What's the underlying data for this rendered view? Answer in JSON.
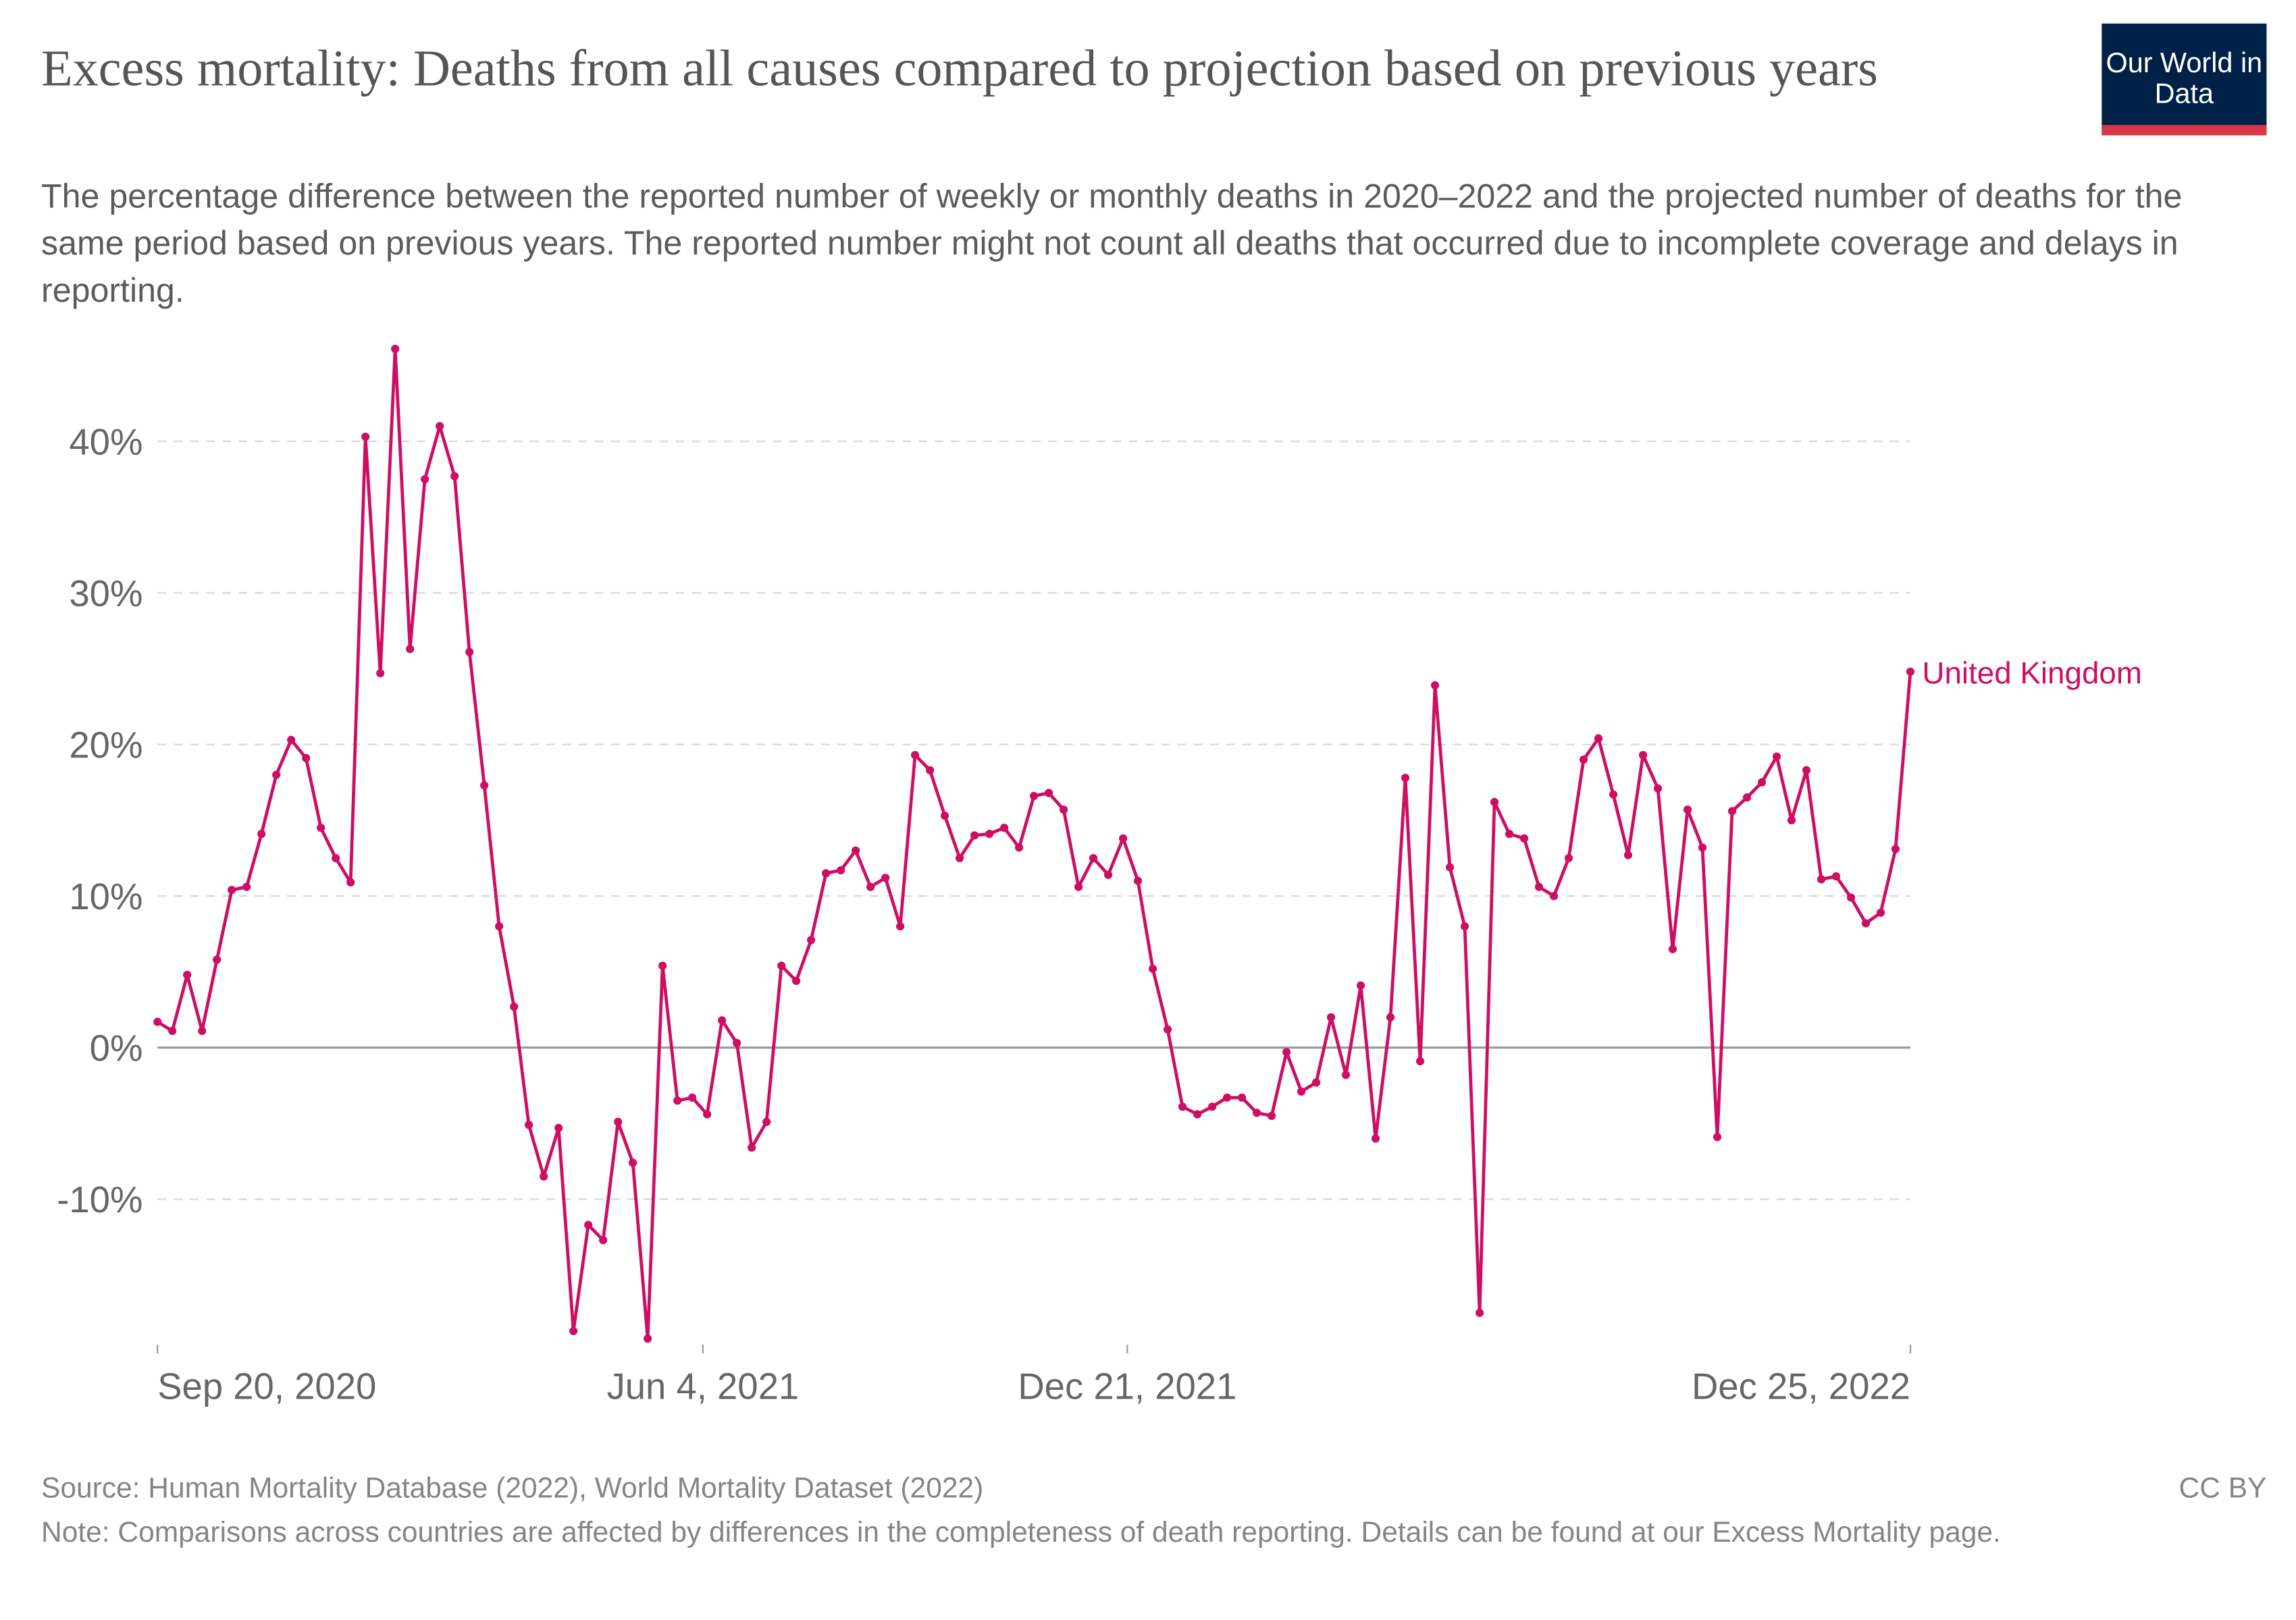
{
  "header": {
    "title": "Excess mortality: Deaths from all causes compared to projection based on previous years",
    "subtitle": "The percentage difference between the reported number of weekly or monthly deaths in 2020–2022 and the projected number of deaths for the same period based on previous years. The reported number might not count all deaths that occurred due to incomplete coverage and delays in reporting.",
    "logo_text": "Our World in Data"
  },
  "footer": {
    "source": "Source: Human Mortality Database (2022), World Mortality Dataset (2022)",
    "license": "CC BY",
    "note": "Note: Comparisons across countries are affected by differences in the completeness of death reporting. Details can be found at our Excess Mortality page."
  },
  "colors": {
    "series": "#ce0e63",
    "grid": "#dddddd",
    "zero": "#999999",
    "logo_bg": "#002147",
    "logo_bar": "#dc3545"
  },
  "chart_data": {
    "type": "line",
    "title": "Excess mortality: Deaths from all causes compared to projection based on previous years",
    "xlabel": "",
    "ylabel": "",
    "start_date": "2020-09-20",
    "interval_days": 7,
    "ylim": [
      -19.5,
      46.5
    ],
    "yticks": [
      -10,
      0,
      10,
      20,
      30,
      40
    ],
    "ytick_labels": [
      "-10%",
      "0%",
      "10%",
      "20%",
      "30%",
      "40%"
    ],
    "xticks": [
      {
        "label": "Sep 20, 2020",
        "day_offset": 0
      },
      {
        "label": "Jun 4, 2021",
        "day_offset": 257
      },
      {
        "label": "Dec 21, 2021",
        "day_offset": 457
      },
      {
        "label": "Dec 25, 2022",
        "day_offset": 826
      }
    ],
    "grid": true,
    "legend": "end-of-line label",
    "series": [
      {
        "name": "United Kingdom",
        "values": [
          1.7,
          1.1,
          4.8,
          1.1,
          5.8,
          10.4,
          10.6,
          14.1,
          18.0,
          20.3,
          19.1,
          14.5,
          12.5,
          10.9,
          40.3,
          24.7,
          46.1,
          26.3,
          37.5,
          41.0,
          37.7,
          26.1,
          17.3,
          8.0,
          2.7,
          -5.1,
          -8.5,
          -5.3,
          -18.7,
          -11.7,
          -12.7,
          -4.9,
          -7.6,
          -19.2,
          5.4,
          -3.5,
          -3.3,
          -4.4,
          1.8,
          0.3,
          -6.6,
          -4.9,
          5.4,
          4.4,
          7.1,
          11.5,
          11.7,
          13.0,
          10.6,
          11.2,
          8.0,
          19.3,
          18.3,
          15.3,
          12.5,
          14.0,
          14.1,
          14.5,
          13.2,
          16.6,
          16.8,
          15.7,
          10.6,
          12.5,
          11.4,
          13.8,
          11.0,
          5.2,
          1.2,
          -3.9,
          -4.4,
          -3.9,
          -3.3,
          -3.3,
          -4.3,
          -4.5,
          -0.3,
          -2.9,
          -2.3,
          2.0,
          -1.8,
          4.1,
          -6.0,
          2.0,
          17.8,
          -0.9,
          23.9,
          11.9,
          8.0,
          -17.5,
          16.2,
          14.1,
          13.8,
          10.6,
          10.0,
          12.5,
          19.0,
          20.4,
          16.7,
          12.7,
          19.3,
          17.1,
          6.5,
          15.7,
          13.2,
          -5.9,
          15.6,
          16.5,
          17.5,
          19.2,
          15.0,
          18.3,
          11.1,
          11.3,
          9.9,
          8.2,
          8.9,
          13.1,
          24.8
        ]
      }
    ]
  }
}
